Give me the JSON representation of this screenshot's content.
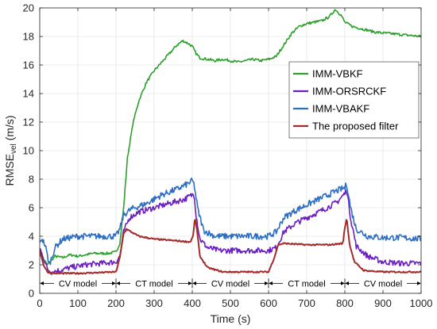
{
  "chart_data": {
    "type": "line",
    "xlabel": "Time (s)",
    "ylabel_main": "RMSE",
    "ylabel_sub": "vel",
    "ylabel_unit": " (m/s)",
    "xlim": [
      0,
      1000
    ],
    "ylim": [
      0,
      20
    ],
    "xticks": [
      0,
      100,
      200,
      300,
      400,
      500,
      600,
      700,
      800,
      900,
      1000
    ],
    "yticks": [
      0,
      2,
      4,
      6,
      8,
      10,
      12,
      14,
      16,
      18,
      20
    ],
    "grid": true,
    "legend_position": "right",
    "series": [
      {
        "name": "IMM-VBKF",
        "color": "#2ca02c",
        "points": [
          [
            0,
            3.2
          ],
          [
            10,
            2.4
          ],
          [
            20,
            2.0
          ],
          [
            30,
            2.3
          ],
          [
            40,
            2.6
          ],
          [
            60,
            2.5
          ],
          [
            80,
            2.7
          ],
          [
            100,
            2.6
          ],
          [
            140,
            2.8
          ],
          [
            180,
            2.8
          ],
          [
            200,
            2.9
          ],
          [
            210,
            3.5
          ],
          [
            220,
            6.0
          ],
          [
            230,
            9.5
          ],
          [
            245,
            12.0
          ],
          [
            260,
            13.5
          ],
          [
            280,
            14.8
          ],
          [
            300,
            15.6
          ],
          [
            320,
            16.2
          ],
          [
            340,
            16.8
          ],
          [
            360,
            17.4
          ],
          [
            375,
            17.7
          ],
          [
            390,
            17.5
          ],
          [
            400,
            17.3
          ],
          [
            410,
            16.8
          ],
          [
            420,
            16.5
          ],
          [
            440,
            16.4
          ],
          [
            460,
            16.3
          ],
          [
            480,
            16.4
          ],
          [
            500,
            16.3
          ],
          [
            520,
            16.2
          ],
          [
            540,
            16.3
          ],
          [
            560,
            16.4
          ],
          [
            580,
            16.3
          ],
          [
            600,
            16.4
          ],
          [
            610,
            16.5
          ],
          [
            620,
            16.6
          ],
          [
            640,
            17.4
          ],
          [
            660,
            18.2
          ],
          [
            680,
            18.7
          ],
          [
            700,
            18.9
          ],
          [
            720,
            19.0
          ],
          [
            740,
            19.1
          ],
          [
            760,
            19.4
          ],
          [
            775,
            19.9
          ],
          [
            790,
            19.5
          ],
          [
            800,
            19.0
          ],
          [
            820,
            18.7
          ],
          [
            850,
            18.5
          ],
          [
            880,
            18.3
          ],
          [
            920,
            18.2
          ],
          [
            960,
            18.1
          ],
          [
            1000,
            18.0
          ]
        ]
      },
      {
        "name": "IMM-ORSRCKF",
        "color": "#6a1fbf",
        "points": [
          [
            0,
            3.1
          ],
          [
            10,
            2.5
          ],
          [
            20,
            1.7
          ],
          [
            30,
            1.5
          ],
          [
            50,
            1.6
          ],
          [
            80,
            1.8
          ],
          [
            120,
            2.0
          ],
          [
            160,
            2.1
          ],
          [
            200,
            2.2
          ],
          [
            210,
            2.6
          ],
          [
            220,
            4.3
          ],
          [
            235,
            5.3
          ],
          [
            260,
            5.7
          ],
          [
            300,
            6.0
          ],
          [
            340,
            6.3
          ],
          [
            380,
            6.6
          ],
          [
            400,
            6.9
          ],
          [
            405,
            7.0
          ],
          [
            410,
            5.5
          ],
          [
            420,
            3.8
          ],
          [
            440,
            3.2
          ],
          [
            470,
            3.0
          ],
          [
            500,
            3.0
          ],
          [
            550,
            3.0
          ],
          [
            600,
            3.0
          ],
          [
            620,
            3.2
          ],
          [
            640,
            4.3
          ],
          [
            670,
            4.9
          ],
          [
            700,
            5.3
          ],
          [
            740,
            5.8
          ],
          [
            780,
            6.4
          ],
          [
            800,
            7.0
          ],
          [
            805,
            7.3
          ],
          [
            815,
            5.3
          ],
          [
            830,
            3.3
          ],
          [
            860,
            2.6
          ],
          [
            900,
            2.2
          ],
          [
            950,
            2.1
          ],
          [
            1000,
            2.1
          ]
        ]
      },
      {
        "name": "IMM-VBAKF",
        "color": "#2e6ec2",
        "points": [
          [
            0,
            3.4
          ],
          [
            5,
            3.9
          ],
          [
            15,
            3.3
          ],
          [
            25,
            2.0
          ],
          [
            40,
            3.2
          ],
          [
            60,
            3.8
          ],
          [
            100,
            4.0
          ],
          [
            150,
            4.0
          ],
          [
            200,
            4.0
          ],
          [
            210,
            4.5
          ],
          [
            220,
            5.5
          ],
          [
            240,
            5.9
          ],
          [
            280,
            6.3
          ],
          [
            320,
            6.9
          ],
          [
            360,
            7.3
          ],
          [
            390,
            7.7
          ],
          [
            400,
            7.9
          ],
          [
            405,
            7.6
          ],
          [
            415,
            5.8
          ],
          [
            430,
            4.4
          ],
          [
            460,
            4.0
          ],
          [
            500,
            4.0
          ],
          [
            550,
            4.0
          ],
          [
            600,
            4.0
          ],
          [
            620,
            4.3
          ],
          [
            640,
            5.3
          ],
          [
            670,
            5.8
          ],
          [
            700,
            6.2
          ],
          [
            740,
            6.7
          ],
          [
            780,
            7.2
          ],
          [
            800,
            7.4
          ],
          [
            805,
            7.7
          ],
          [
            815,
            6.0
          ],
          [
            830,
            4.5
          ],
          [
            860,
            4.0
          ],
          [
            900,
            3.9
          ],
          [
            950,
            3.9
          ],
          [
            1000,
            3.8
          ]
        ]
      },
      {
        "name": "The proposed filter",
        "color": "#a52a2a",
        "points": [
          [
            0,
            3.0
          ],
          [
            10,
            2.0
          ],
          [
            20,
            1.5
          ],
          [
            40,
            1.4
          ],
          [
            100,
            1.4
          ],
          [
            200,
            1.5
          ],
          [
            210,
            2.5
          ],
          [
            220,
            4.2
          ],
          [
            228,
            4.5
          ],
          [
            240,
            4.3
          ],
          [
            260,
            4.0
          ],
          [
            300,
            3.8
          ],
          [
            350,
            3.7
          ],
          [
            395,
            3.6
          ],
          [
            402,
            4.0
          ],
          [
            407,
            5.3
          ],
          [
            412,
            4.5
          ],
          [
            420,
            2.6
          ],
          [
            440,
            1.8
          ],
          [
            480,
            1.5
          ],
          [
            550,
            1.5
          ],
          [
            600,
            1.5
          ],
          [
            615,
            2.5
          ],
          [
            625,
            3.4
          ],
          [
            640,
            3.5
          ],
          [
            700,
            3.4
          ],
          [
            760,
            3.4
          ],
          [
            795,
            3.5
          ],
          [
            800,
            4.6
          ],
          [
            805,
            5.3
          ],
          [
            812,
            3.5
          ],
          [
            825,
            2.2
          ],
          [
            850,
            1.6
          ],
          [
            900,
            1.5
          ],
          [
            1000,
            1.5
          ]
        ]
      }
    ],
    "segments": [
      {
        "label": "CV model",
        "x0": 0,
        "x1": 200
      },
      {
        "label": "CT model",
        "x0": 200,
        "x1": 400
      },
      {
        "label": "CV model",
        "x0": 400,
        "x1": 600
      },
      {
        "label": "CT model",
        "x0": 600,
        "x1": 800
      },
      {
        "label": "CV model",
        "x0": 800,
        "x1": 1000
      }
    ],
    "segment_arrow_y": 0.7
  }
}
